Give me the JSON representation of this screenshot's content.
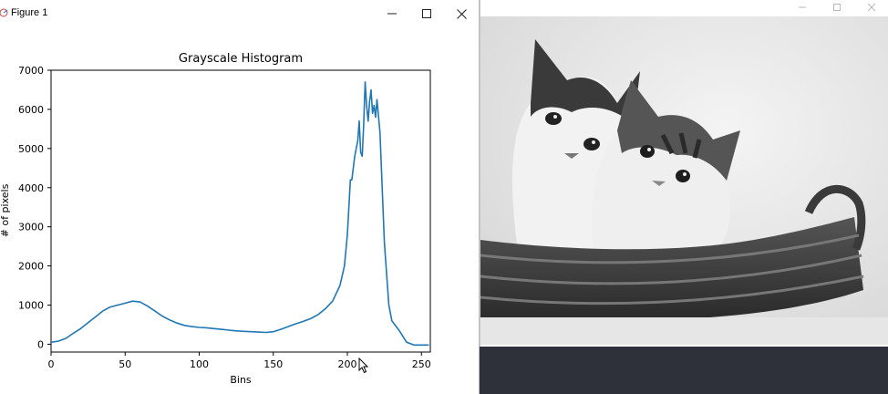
{
  "figure_window": {
    "title": "Figure 1",
    "controls": {
      "minimize_icon": "minimize-icon",
      "maximize_icon": "maximize-icon",
      "close_icon": "close-icon"
    }
  },
  "image_window": {
    "controls": {
      "minimize_icon": "minimize-icon",
      "maximize_icon": "maximize-icon",
      "close_icon": "close-icon"
    },
    "image_subject": "grayscale photo of two kittens in a wicker basket"
  },
  "chart_data": {
    "type": "line",
    "title": "Grayscale Histogram",
    "xlabel": "Bins",
    "ylabel": "# of pixels",
    "xlim": [
      0,
      256
    ],
    "ylim": [
      -200,
      7000
    ],
    "xticks": [
      0,
      50,
      100,
      150,
      200,
      250
    ],
    "yticks": [
      0,
      1000,
      2000,
      3000,
      4000,
      5000,
      6000,
      7000
    ],
    "series_color": "#1f77b4",
    "x": [
      0,
      5,
      10,
      15,
      20,
      25,
      30,
      35,
      40,
      45,
      50,
      55,
      60,
      65,
      70,
      75,
      80,
      85,
      90,
      95,
      100,
      105,
      110,
      115,
      120,
      125,
      130,
      135,
      140,
      145,
      150,
      155,
      160,
      165,
      170,
      175,
      180,
      185,
      190,
      195,
      198,
      200,
      202,
      203,
      205,
      207,
      208,
      209,
      210,
      211,
      212,
      213,
      214,
      215,
      216,
      217,
      218,
      219,
      220,
      222,
      225,
      228,
      230,
      232,
      235,
      240,
      245,
      250,
      255
    ],
    "values": [
      50,
      80,
      150,
      280,
      400,
      550,
      700,
      850,
      950,
      1000,
      1050,
      1100,
      1080,
      980,
      850,
      720,
      620,
      540,
      480,
      450,
      430,
      420,
      400,
      380,
      360,
      340,
      330,
      320,
      310,
      300,
      320,
      380,
      450,
      520,
      580,
      650,
      750,
      900,
      1100,
      1500,
      2000,
      2800,
      4200,
      4200,
      4800,
      5200,
      5700,
      4900,
      4800,
      5600,
      6700,
      6100,
      5700,
      6200,
      6500,
      5900,
      6100,
      5800,
      6250,
      5400,
      2600,
      1000,
      600,
      500,
      350,
      50,
      -20,
      -20,
      -20
    ]
  }
}
